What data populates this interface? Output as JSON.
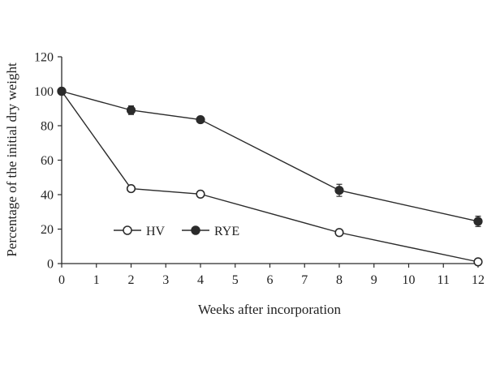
{
  "chart_data": {
    "type": "line",
    "title": "",
    "xlabel": "Weeks after incorporation",
    "ylabel": "Percentage of the initial dry weight",
    "xlim": [
      0,
      12
    ],
    "ylim": [
      0,
      120
    ],
    "x_ticks": [
      0,
      1,
      2,
      3,
      4,
      5,
      6,
      7,
      8,
      9,
      10,
      11,
      12
    ],
    "y_ticks": [
      0,
      20,
      40,
      60,
      80,
      100,
      120
    ],
    "grid": false,
    "legend_placement": "lower-left inside plot",
    "series": [
      {
        "name": "HV",
        "marker": "open-circle",
        "x": [
          0,
          2,
          4,
          8,
          12
        ],
        "values": [
          100,
          43.5,
          40.3,
          18,
          1
        ],
        "errors": [
          0,
          0,
          0,
          0,
          0
        ]
      },
      {
        "name": "RYE",
        "marker": "filled-circle",
        "x": [
          0,
          2,
          4,
          8,
          12
        ],
        "values": [
          100,
          89,
          83.5,
          42.5,
          24.5
        ],
        "errors": [
          0,
          2.5,
          0,
          3.5,
          3
        ]
      }
    ],
    "colors": {
      "line": "#2b2b2b",
      "filled_marker": "#2b2b2b",
      "open_marker_fill": "#ffffff"
    }
  }
}
